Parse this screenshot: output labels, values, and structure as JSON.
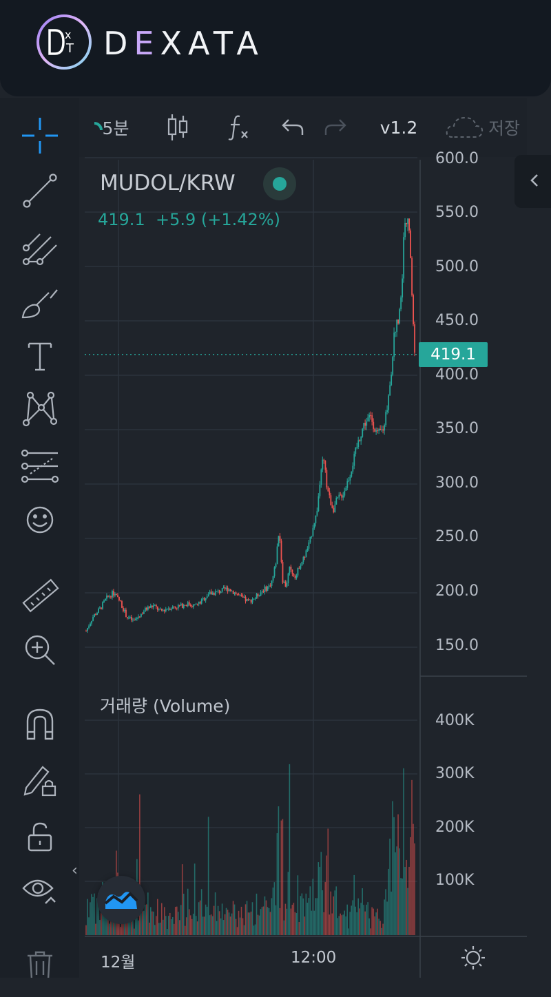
{
  "brand": {
    "name_before": "D",
    "name_accent": "E",
    "name_after": "XATA",
    "mark_text": "D X T"
  },
  "toolbar": {
    "interval_label": "5분",
    "version_label": "v1.2",
    "save_label": "저장"
  },
  "symbol": {
    "name": "MUDOL/KRW",
    "last_price": "419.1",
    "change": "+5.9",
    "change_pct": "(+1.42%)"
  },
  "price_axis": {
    "labels": [
      "600.0",
      "550.0",
      "500.0",
      "450.0",
      "400.0",
      "350.0",
      "300.0",
      "250.0",
      "200.0",
      "150.0"
    ],
    "current_tag": "419.1"
  },
  "volume_panel": {
    "title": "거래량 (Volume)",
    "labels": [
      "400K",
      "300K",
      "200K",
      "100K"
    ]
  },
  "time_axis": {
    "labels": [
      "12월",
      "12:00"
    ]
  },
  "colors": {
    "up": "#26a69a",
    "down": "#ef5350",
    "accent": "#2196f3",
    "background": "#1f242b"
  },
  "sidebar_icons": [
    "crosshair-icon",
    "trend-line-icon",
    "pitchfork-icon",
    "brush-icon",
    "text-icon",
    "pattern-icon",
    "fib-icon",
    "emoji-icon",
    "ruler-icon",
    "zoom-in-icon",
    "magnet-icon",
    "lock-drawing-icon",
    "unlock-icon",
    "eye-icon",
    "trash-icon"
  ],
  "chart_data": {
    "type": "candlestick",
    "symbol": "MUDOL/KRW",
    "x_ticks": [
      "12월",
      "12:00"
    ],
    "ylim": [
      135,
      600
    ],
    "price_series": [
      [
        0,
        165
      ],
      [
        2,
        178
      ],
      [
        4,
        185
      ],
      [
        6,
        195
      ],
      [
        8,
        200
      ],
      [
        10,
        192
      ],
      [
        12,
        178
      ],
      [
        14,
        174
      ],
      [
        16,
        180
      ],
      [
        18,
        186
      ],
      [
        20,
        188
      ],
      [
        22,
        183
      ],
      [
        24,
        186
      ],
      [
        26,
        187
      ],
      [
        28,
        188
      ],
      [
        30,
        190
      ],
      [
        32,
        188
      ],
      [
        34,
        192
      ],
      [
        36,
        199
      ],
      [
        38,
        200
      ],
      [
        40,
        202
      ],
      [
        42,
        204
      ],
      [
        44,
        200
      ],
      [
        46,
        195
      ],
      [
        48,
        192
      ],
      [
        50,
        196
      ],
      [
        52,
        202
      ],
      [
        54,
        206
      ],
      [
        55,
        212
      ],
      [
        56,
        228
      ],
      [
        57,
        260
      ],
      [
        58,
        212
      ],
      [
        59,
        206
      ],
      [
        60,
        222
      ],
      [
        62,
        215
      ],
      [
        63,
        226
      ],
      [
        64,
        230
      ],
      [
        66,
        246
      ],
      [
        67,
        262
      ],
      [
        68,
        272
      ],
      [
        69,
        300
      ],
      [
        70,
        325
      ],
      [
        71,
        300
      ],
      [
        72,
        285
      ],
      [
        73,
        277
      ],
      [
        74,
        285
      ],
      [
        76,
        292
      ],
      [
        78,
        310
      ],
      [
        80,
        335
      ],
      [
        82,
        355
      ],
      [
        84,
        362
      ],
      [
        86,
        345
      ],
      [
        88,
        352
      ],
      [
        89,
        375
      ],
      [
        90,
        400
      ],
      [
        91,
        440
      ],
      [
        92,
        450
      ],
      [
        93,
        470
      ],
      [
        94,
        540
      ],
      [
        95,
        550
      ],
      [
        96,
        490
      ],
      [
        97,
        419
      ]
    ],
    "volume_ylim": [
      0,
      450000
    ],
    "volume_ticks": [
      "100K",
      "200K",
      "300K",
      "400K"
    ]
  }
}
